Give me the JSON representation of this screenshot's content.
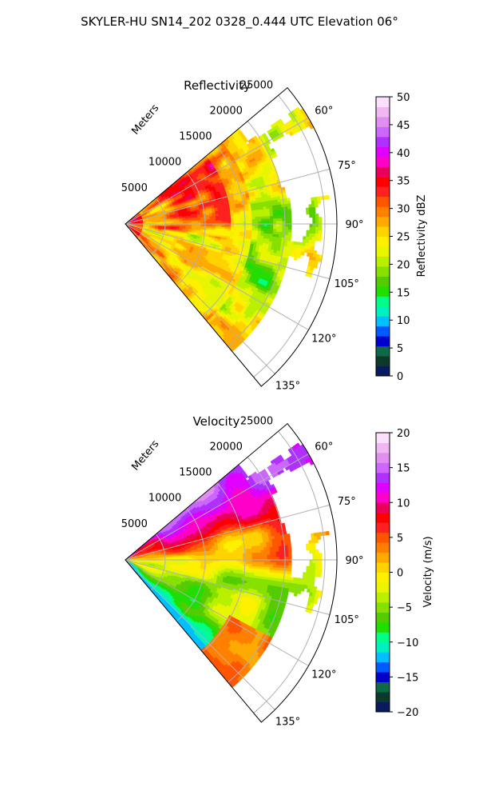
{
  "figure": {
    "suptitle": "SKYLER-HU  SN14_202  0328_0.444 UTC Elevation 06°"
  },
  "chart_data": [
    {
      "type": "heatmap",
      "projection": "polar-sector",
      "title": "Reflectivity",
      "radial_axis_label": "Meters",
      "radial_ticks": [
        5000,
        10000,
        15000,
        20000,
        25000
      ],
      "radial_tick_labels": [
        "5000",
        "10000",
        "15000",
        "20000",
        "25000"
      ],
      "rlim": [
        0,
        26500
      ],
      "azimuth_range_deg": [
        50,
        140
      ],
      "azimuth_ticks": [
        60,
        75,
        90,
        105,
        120,
        135
      ],
      "azimuth_tick_labels": [
        "60°",
        "75°",
        "90°",
        "105°",
        "120°",
        "135°"
      ],
      "grid": true,
      "colorbar": {
        "label": "Reflectivity dBZ",
        "range": [
          0,
          50
        ],
        "ticks": [
          0,
          5,
          10,
          15,
          20,
          25,
          30,
          35,
          40,
          45,
          50
        ],
        "tick_labels": [
          "0",
          "5",
          "10",
          "15",
          "20",
          "25",
          "30",
          "35",
          "40",
          "45",
          "50"
        ],
        "colors": [
          "#0a1a5e",
          "#0b3a2a",
          "#0e6a46",
          "#0000cc",
          "#005bff",
          "#00bfff",
          "#00f0c0",
          "#00ff88",
          "#22dd00",
          "#55cc00",
          "#88e000",
          "#b8f000",
          "#e8f500",
          "#fff000",
          "#ffd200",
          "#ffaa00",
          "#ff8000",
          "#ff5500",
          "#ff2020",
          "#ff0000",
          "#e8005a",
          "#ff00c8",
          "#e000ff",
          "#b030ff",
          "#cc66ff",
          "#e08ff0",
          "#f0b8f0",
          "#fae0fa"
        ]
      },
      "description_values": {
        "dominant_band_dBZ": [
          15,
          30
        ],
        "peak_dBZ": 42
      }
    },
    {
      "type": "heatmap",
      "projection": "polar-sector",
      "title": "Velocity",
      "radial_axis_label": "Meters",
      "radial_ticks": [
        5000,
        10000,
        15000,
        20000,
        25000
      ],
      "radial_tick_labels": [
        "5000",
        "10000",
        "15000",
        "20000",
        "25000"
      ],
      "rlim": [
        0,
        26500
      ],
      "azimuth_range_deg": [
        50,
        140
      ],
      "azimuth_ticks": [
        60,
        75,
        90,
        105,
        120,
        135
      ],
      "azimuth_tick_labels": [
        "60°",
        "75°",
        "90°",
        "105°",
        "120°",
        "135°"
      ],
      "grid": true,
      "colorbar": {
        "label": "Velocity (m/s)",
        "range": [
          -20,
          20
        ],
        "ticks": [
          -20,
          -15,
          -10,
          -5,
          0,
          5,
          10,
          15,
          20
        ],
        "tick_labels": [
          "−20",
          "−15",
          "−10",
          "−5",
          "0",
          "5",
          "10",
          "15",
          "20"
        ],
        "colors": [
          "#0a1a5e",
          "#0b3a2a",
          "#0e6a46",
          "#0000cc",
          "#005bff",
          "#00bfff",
          "#00f0c0",
          "#00ff88",
          "#22dd00",
          "#55cc00",
          "#88e000",
          "#b8f000",
          "#e8f500",
          "#fff000",
          "#ffd200",
          "#ffaa00",
          "#ff8000",
          "#ff5500",
          "#ff2020",
          "#ff0000",
          "#e8005a",
          "#ff00c8",
          "#e000ff",
          "#b030ff",
          "#cc66ff",
          "#e08ff0",
          "#f0b8f0",
          "#fae0fa"
        ]
      },
      "description_values": {
        "inbound_min_ms": -12,
        "outbound_max_ms": 16
      }
    }
  ]
}
